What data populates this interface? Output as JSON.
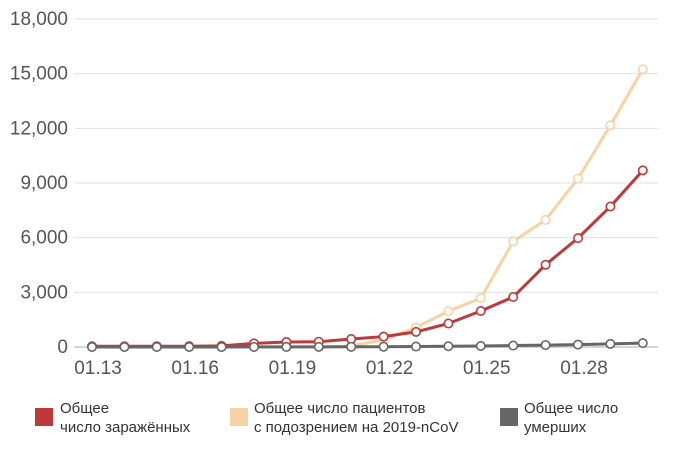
{
  "chart_data": {
    "type": "line",
    "x": [
      "01.13",
      "01.14",
      "01.15",
      "01.16",
      "01.17",
      "01.18",
      "01.19",
      "01.20",
      "01.21",
      "01.22",
      "01.23",
      "01.24",
      "01.25",
      "01.26",
      "01.27",
      "01.28",
      "01.29",
      "01.30"
    ],
    "x_tick_labels": [
      "01.13",
      "01.16",
      "01.19",
      "01.22",
      "01.25",
      "01.28"
    ],
    "y_ticks": [
      0,
      3000,
      6000,
      9000,
      12000,
      15000,
      18000
    ],
    "y_tick_labels": [
      "0",
      "3,000",
      "6,000",
      "9,000",
      "12,000",
      "15,000",
      "18,000"
    ],
    "ylim": [
      0,
      18000
    ],
    "grid": true,
    "legend_position": "bottom",
    "series": [
      {
        "name": "Общее число пациентов с подозрением на 2019-nCoV",
        "legend_lines": [
          "Общее число пациентов",
          "с подозрением на 2019-nCoV"
        ],
        "color": "#f5d3a4",
        "values": [
          0,
          0,
          0,
          0,
          0,
          0,
          0,
          0,
          54,
          393,
          1072,
          1965,
          2684,
          5794,
          6973,
          9239,
          12167,
          15238
        ]
      },
      {
        "name": "Общее число заражённых",
        "legend_lines": [
          "Общее",
          "число заражённых"
        ],
        "color": "#c0383a",
        "values": [
          41,
          41,
          41,
          45,
          62,
          198,
          275,
          291,
          440,
          571,
          830,
          1287,
          1975,
          2744,
          4515,
          5974,
          7711,
          9692
        ]
      },
      {
        "name": "Общее число умерших",
        "legend_lines": [
          "Общее число",
          "умерших"
        ],
        "color": "#666666",
        "values": [
          1,
          1,
          1,
          2,
          2,
          3,
          4,
          6,
          9,
          17,
          25,
          41,
          56,
          80,
          106,
          132,
          170,
          213
        ]
      }
    ]
  }
}
